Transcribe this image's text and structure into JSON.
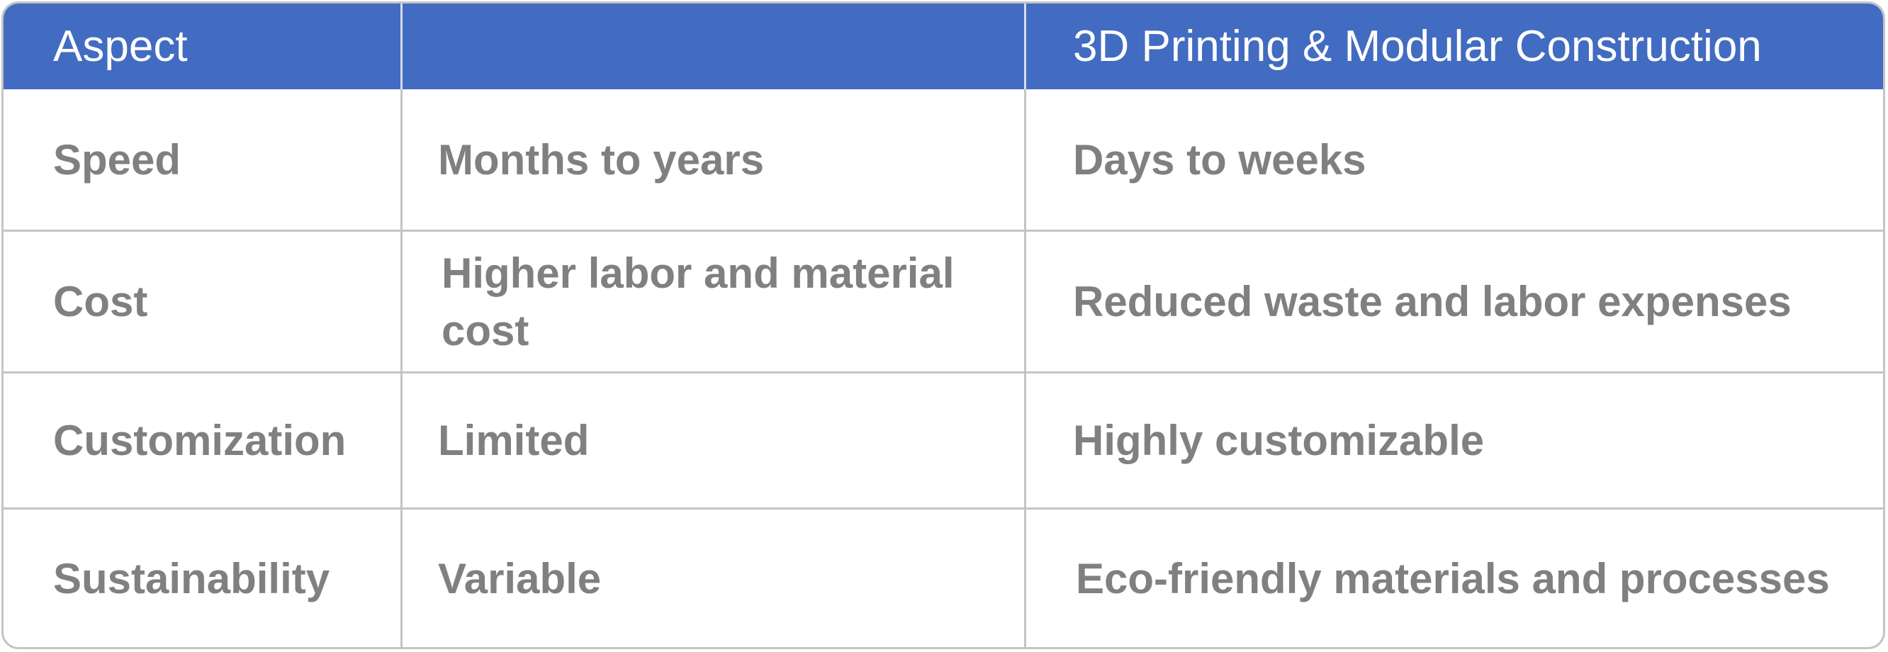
{
  "table": {
    "headers": [
      "Aspect",
      "",
      "3D Printing & Modular Construction"
    ],
    "rows": [
      [
        "Speed",
        "Months to years",
        "Days to weeks"
      ],
      [
        "Cost",
        "Higher labor and material cost",
        "Reduced waste and labor expenses"
      ],
      [
        "Customization",
        "Limited",
        "Highly customizable"
      ],
      [
        "Sustainability",
        "Variable",
        "Eco-friendly materials and processes"
      ]
    ]
  },
  "colors": {
    "header_bg": "#426bc2",
    "header_text": "#ffffff",
    "body_text": "#808080",
    "border": "#c4c4c4"
  }
}
